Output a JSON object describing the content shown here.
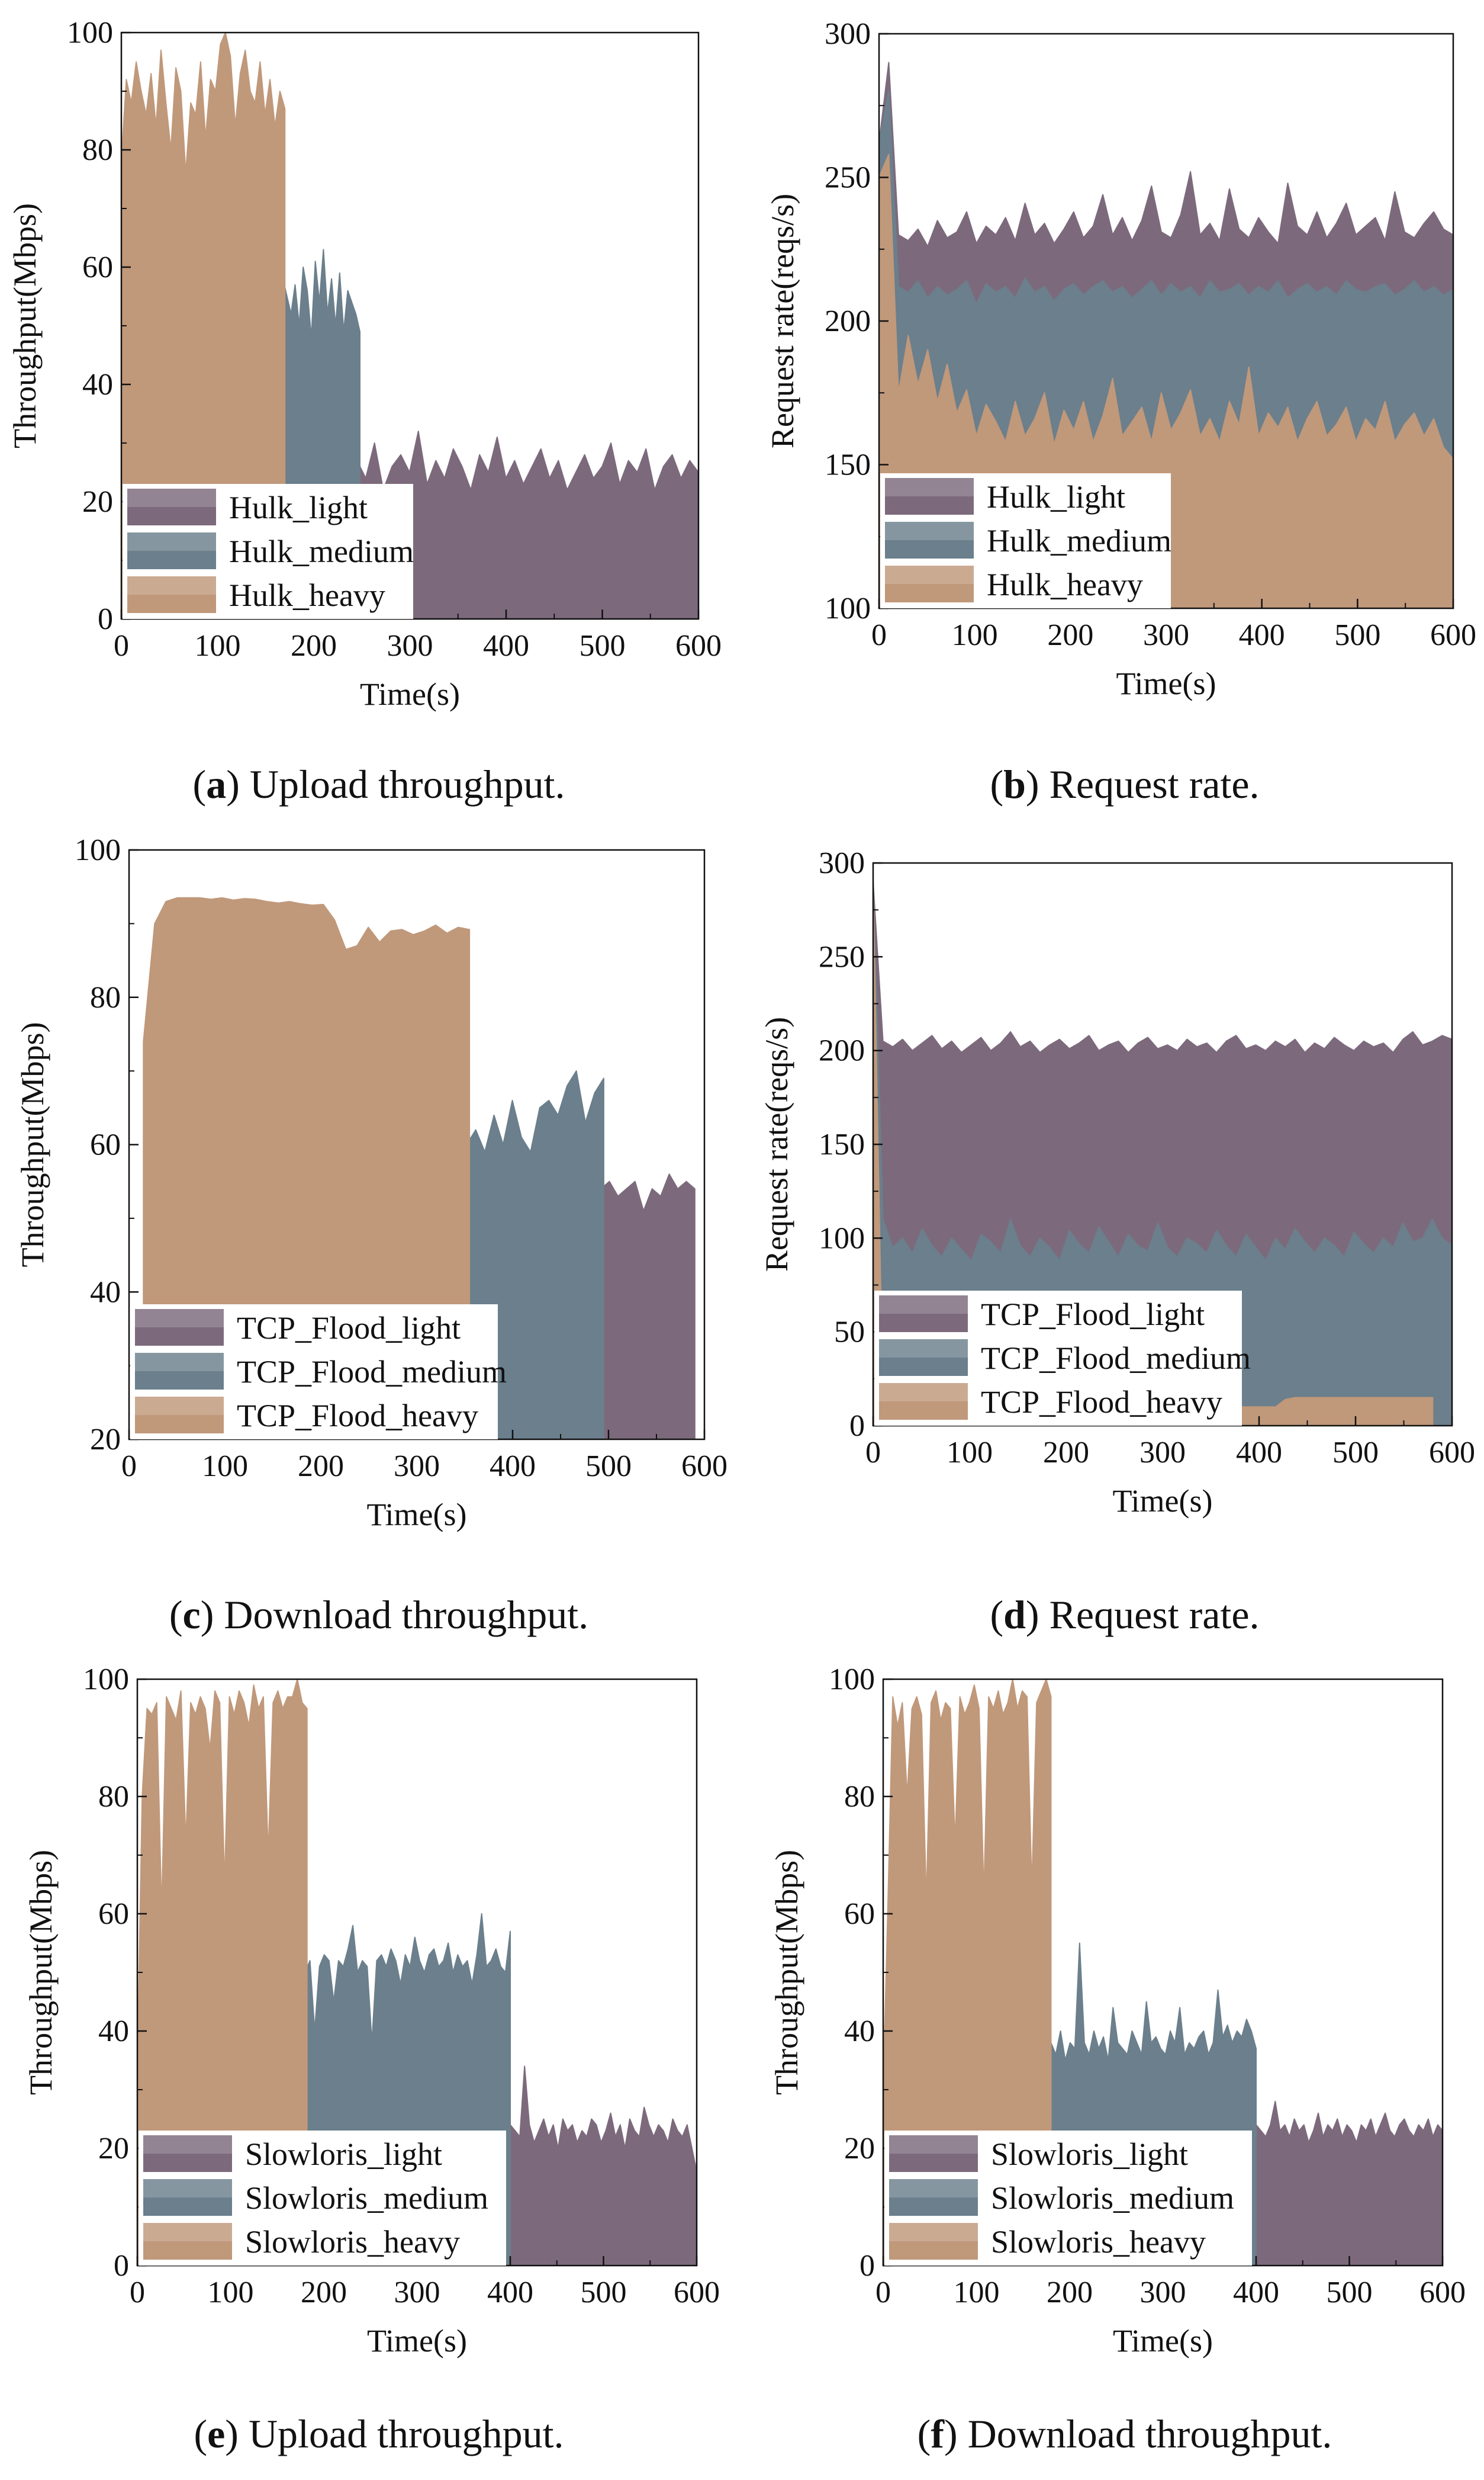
{
  "colors": {
    "light": "#7c6a7c",
    "medium": "#6b7f8c",
    "heavy": "#c0987a",
    "axis": "#111111"
  },
  "chart_data": [
    {
      "id": "a",
      "type": "area",
      "caption": {
        "letter": "a",
        "text": "Upload throughput."
      },
      "xlabel": "Time(s)",
      "ylabel": "Throughput(Mbps)",
      "xlim": [
        0,
        600
      ],
      "ylim": [
        0,
        100
      ],
      "xticks": [
        0,
        100,
        200,
        300,
        400,
        500,
        600
      ],
      "yticks": [
        0,
        20,
        40,
        60,
        80,
        100
      ],
      "legend": {
        "position": "bottom-left"
      },
      "series": [
        {
          "name": "Hulk_light",
          "color_key": "light",
          "x_start": 245,
          "x_end": 600,
          "values": [
            27,
            24,
            30,
            22,
            26,
            28,
            25,
            32,
            23,
            27,
            24,
            29,
            26,
            22,
            28,
            25,
            31,
            24,
            27,
            23,
            26,
            29,
            24,
            27,
            22,
            25,
            28,
            24,
            26,
            30,
            23,
            27,
            25,
            29,
            22,
            26,
            28,
            24,
            27,
            25
          ]
        },
        {
          "name": "Hulk_medium",
          "color_key": "medium",
          "x_start": 168,
          "x_end": 248,
          "values": [
            58,
            55,
            52,
            57,
            50,
            60,
            56,
            48,
            61,
            54,
            63,
            52,
            58,
            50,
            59,
            49,
            56,
            54,
            52,
            49
          ]
        },
        {
          "name": "Hulk_heavy",
          "color_key": "heavy",
          "x_start": 0,
          "x_end": 170,
          "values": [
            78,
            92,
            88,
            95,
            90,
            86,
            93,
            84,
            97,
            88,
            80,
            94,
            90,
            76,
            88,
            86,
            95,
            82,
            92,
            90,
            98,
            100,
            96,
            84,
            93,
            97,
            90,
            88,
            95,
            86,
            92,
            84,
            90,
            87
          ]
        }
      ]
    },
    {
      "id": "b",
      "type": "area",
      "caption": {
        "letter": "b",
        "text": "Request rate."
      },
      "xlabel": "Time(s)",
      "ylabel": "Request rate(reqs/s)",
      "xlim": [
        0,
        600
      ],
      "ylim": [
        100,
        300
      ],
      "xticks": [
        0,
        100,
        200,
        300,
        400,
        500,
        600
      ],
      "yticks": [
        100,
        150,
        200,
        250,
        300
      ],
      "legend": {
        "position": "bottom-left"
      },
      "series": [
        {
          "name": "Hulk_light",
          "color_key": "light",
          "x_start": 0,
          "x_end": 600,
          "values": [
            262,
            290,
            230,
            228,
            232,
            226,
            235,
            229,
            231,
            238,
            227,
            233,
            230,
            236,
            228,
            241,
            230,
            234,
            227,
            232,
            238,
            229,
            233,
            244,
            230,
            236,
            228,
            235,
            247,
            231,
            229,
            237,
            252,
            230,
            234,
            228,
            246,
            232,
            229,
            236,
            231,
            227,
            248,
            233,
            230,
            238,
            229,
            234,
            241,
            230,
            233,
            236,
            228,
            245,
            231,
            229,
            234,
            238,
            232,
            230
          ]
        },
        {
          "name": "Hulk_medium",
          "color_key": "medium",
          "x_start": 0,
          "x_end": 600,
          "values": [
            262,
            280,
            212,
            210,
            214,
            208,
            212,
            209,
            211,
            214,
            206,
            213,
            210,
            212,
            208,
            215,
            210,
            212,
            207,
            211,
            213,
            209,
            212,
            214,
            210,
            212,
            208,
            211,
            214,
            209,
            213,
            210,
            212,
            208,
            214,
            210,
            211,
            213,
            209,
            212,
            210,
            214,
            208,
            211,
            213,
            210,
            212,
            209,
            214,
            211,
            210,
            212,
            213,
            209,
            211,
            214,
            210,
            212,
            209,
            211
          ]
        },
        {
          "name": "Hulk_heavy",
          "color_key": "heavy",
          "x_start": 0,
          "x_end": 600,
          "values": [
            250,
            258,
            175,
            195,
            178,
            190,
            172,
            185,
            168,
            176,
            160,
            171,
            165,
            158,
            172,
            160,
            166,
            175,
            157,
            169,
            162,
            172,
            158,
            167,
            180,
            160,
            165,
            170,
            158,
            175,
            162,
            168,
            176,
            160,
            166,
            158,
            172,
            164,
            184,
            160,
            168,
            163,
            170,
            158,
            166,
            172,
            160,
            164,
            170,
            158,
            166,
            162,
            172,
            158,
            164,
            168,
            160,
            166,
            156,
            152
          ]
        }
      ]
    },
    {
      "id": "c",
      "type": "area",
      "caption": {
        "letter": "c",
        "text": "Download throughput."
      },
      "xlabel": "Time(s)",
      "ylabel": "Throughput(Mbps)",
      "xlim": [
        0,
        600
      ],
      "ylim": [
        20,
        100
      ],
      "xticks": [
        0,
        100,
        200,
        300,
        400,
        500,
        600
      ],
      "yticks": [
        20,
        40,
        60,
        80,
        100
      ],
      "legend": {
        "position": "bottom-left"
      },
      "series": [
        {
          "name": "TCP_Flood_light",
          "color_key": "light",
          "x_start": 492,
          "x_end": 590,
          "values": [
            54,
            55,
            53,
            54,
            55,
            51,
            54,
            53,
            56,
            54,
            55,
            54
          ]
        },
        {
          "name": "TCP_Flood_medium",
          "color_key": "medium",
          "x_start": 352,
          "x_end": 495,
          "values": [
            60,
            62,
            59,
            64,
            60,
            66,
            61,
            59,
            65,
            66,
            64,
            68,
            70,
            63,
            67,
            69
          ]
        },
        {
          "name": "TCP_Flood_heavy",
          "color_key": "heavy",
          "x_start": 15,
          "x_end": 355,
          "values": [
            74,
            90,
            93,
            93.5,
            93.5,
            93.5,
            93.3,
            93.5,
            93.2,
            93.4,
            93.3,
            93,
            92.8,
            93,
            92.7,
            92.5,
            92.6,
            90.5,
            86.5,
            87,
            89.5,
            87.5,
            89,
            89.2,
            88.5,
            89,
            89.8,
            88.7,
            89.5,
            89.2
          ]
        }
      ]
    },
    {
      "id": "d",
      "type": "area",
      "caption": {
        "letter": "d",
        "text": "Request rate."
      },
      "xlabel": "Time(s)",
      "ylabel": "Request rate(reqs/s)",
      "xlim": [
        0,
        600
      ],
      "ylim": [
        0,
        300
      ],
      "xticks": [
        0,
        100,
        200,
        300,
        400,
        500,
        600
      ],
      "yticks": [
        0,
        50,
        100,
        150,
        200,
        250,
        300
      ],
      "legend": {
        "position": "bottom-left"
      },
      "series": [
        {
          "name": "TCP_Flood_light",
          "color_key": "light",
          "x_start": 0,
          "x_end": 600,
          "values": [
            290,
            205,
            202,
            206,
            200,
            204,
            208,
            201,
            205,
            199,
            203,
            207,
            200,
            204,
            210,
            202,
            205,
            199,
            203,
            206,
            201,
            204,
            208,
            200,
            203,
            205,
            199,
            204,
            207,
            201,
            203,
            200,
            206,
            202,
            204,
            199,
            205,
            208,
            201,
            203,
            200,
            205,
            202,
            206,
            199,
            204,
            201,
            207,
            203,
            200,
            205,
            202,
            204,
            199,
            206,
            210,
            203,
            205,
            208,
            206
          ]
        },
        {
          "name": "TCP_Flood_medium",
          "color_key": "medium",
          "x_start": 0,
          "x_end": 600,
          "values": [
            290,
            110,
            95,
            100,
            92,
            105,
            96,
            90,
            100,
            94,
            88,
            102,
            98,
            92,
            110,
            96,
            90,
            100,
            95,
            88,
            104,
            97,
            92,
            106,
            98,
            90,
            102,
            96,
            93,
            108,
            95,
            90,
            100,
            97,
            92,
            104,
            96,
            90,
            102,
            95,
            88,
            100,
            94,
            105,
            98,
            92,
            100,
            96,
            90,
            103,
            97,
            92,
            100,
            95,
            108,
            98,
            100,
            110,
            100,
            96
          ]
        },
        {
          "name": "TCP_Flood_heavy",
          "color_key": "heavy",
          "x_start": 0,
          "x_end": 580,
          "values": [
            290,
            10,
            10,
            10,
            10,
            10,
            10,
            10,
            10,
            10,
            10,
            10,
            10,
            10,
            10,
            10,
            10,
            10,
            10,
            10,
            10,
            10,
            10,
            10,
            10,
            10,
            10,
            10,
            10,
            10,
            10,
            10,
            10,
            10,
            10,
            10,
            10,
            10,
            10,
            10,
            10,
            10,
            14,
            15,
            15,
            15,
            15,
            15,
            15,
            15,
            15,
            15,
            15,
            15,
            15,
            15,
            15,
            15
          ]
        }
      ]
    },
    {
      "id": "e",
      "type": "area",
      "caption": {
        "letter": "e",
        "text": "Upload throughput."
      },
      "xlabel": "Time(s)",
      "ylabel": "Throughput(Mbps)",
      "xlim": [
        0,
        600
      ],
      "ylim": [
        0,
        100
      ],
      "xticks": [
        0,
        100,
        200,
        300,
        400,
        500,
        600
      ],
      "yticks": [
        0,
        20,
        40,
        60,
        80,
        100
      ],
      "legend": {
        "position": "bottom-left"
      },
      "series": [
        {
          "name": "Slowloris_light",
          "color_key": "light",
          "x_start": 400,
          "x_end": 600,
          "values": [
            24,
            23,
            22,
            34,
            24,
            21,
            23,
            25,
            22,
            24,
            20,
            25,
            23,
            24,
            21,
            23,
            22,
            25,
            24,
            21,
            23,
            26,
            22,
            24,
            20,
            25,
            23,
            22,
            27,
            24,
            22,
            24,
            23,
            21,
            25,
            23,
            22,
            24,
            20,
            16
          ]
        },
        {
          "name": "Slowloris_medium",
          "color_key": "medium",
          "x_start": 180,
          "x_end": 400,
          "values": [
            50,
            52,
            40,
            51,
            53,
            52,
            45,
            52,
            51,
            54,
            58,
            50,
            52,
            51,
            38,
            52,
            53,
            51,
            54,
            52,
            48,
            53,
            51,
            56,
            52,
            50,
            53,
            54,
            51,
            52,
            55,
            50,
            53,
            51,
            52,
            48,
            53,
            60,
            51,
            52,
            54,
            51,
            50,
            57
          ]
        },
        {
          "name": "Slowloris_heavy",
          "color_key": "heavy",
          "x_start": 0,
          "x_end": 182,
          "values": [
            33,
            80,
            95,
            94,
            96,
            60,
            97,
            95,
            93,
            98,
            72,
            96,
            94,
            97,
            95,
            88,
            98,
            96,
            65,
            97,
            94,
            98,
            96,
            92,
            99,
            95,
            97,
            70,
            96,
            98,
            95,
            97,
            97,
            100,
            96,
            95
          ]
        }
      ]
    },
    {
      "id": "f",
      "type": "area",
      "caption": {
        "letter": "f",
        "text": "Download throughput."
      },
      "xlabel": "Time(s)",
      "ylabel": "Throughput(Mbps)",
      "xlim": [
        0,
        600
      ],
      "ylim": [
        0,
        100
      ],
      "xticks": [
        0,
        100,
        200,
        300,
        400,
        500,
        600
      ],
      "yticks": [
        0,
        20,
        40,
        60,
        80,
        100
      ],
      "legend": {
        "position": "bottom-left"
      },
      "series": [
        {
          "name": "Slowloris_light",
          "color_key": "light",
          "x_start": 400,
          "x_end": 600,
          "values": [
            24,
            23,
            22,
            24,
            28,
            23,
            24,
            22,
            25,
            23,
            24,
            21,
            23,
            26,
            22,
            24,
            23,
            25,
            22,
            24,
            23,
            21,
            24,
            23,
            25,
            22,
            24,
            26,
            23,
            22,
            24,
            25,
            23,
            22,
            24,
            23,
            25,
            22,
            24,
            23
          ]
        },
        {
          "name": "Slowloris_medium",
          "color_key": "medium",
          "x_start": 180,
          "x_end": 400,
          "values": [
            38,
            36,
            40,
            35,
            38,
            37,
            55,
            38,
            36,
            40,
            37,
            39,
            35,
            44,
            38,
            37,
            36,
            40,
            38,
            36,
            45,
            38,
            39,
            37,
            36,
            40,
            38,
            44,
            36,
            38,
            37,
            39,
            40,
            36,
            38,
            47,
            39,
            41,
            38,
            40,
            39,
            42,
            40,
            37
          ]
        },
        {
          "name": "Slowloris_heavy",
          "color_key": "heavy",
          "x_start": 0,
          "x_end": 180,
          "values": [
            30,
            62,
            97,
            92,
            96,
            80,
            95,
            97,
            94,
            62,
            96,
            98,
            93,
            96,
            95,
            72,
            97,
            94,
            96,
            99,
            95,
            63,
            97,
            95,
            98,
            94,
            96,
            100,
            95,
            98,
            97,
            64,
            96,
            98,
            100,
            97
          ]
        }
      ]
    }
  ]
}
